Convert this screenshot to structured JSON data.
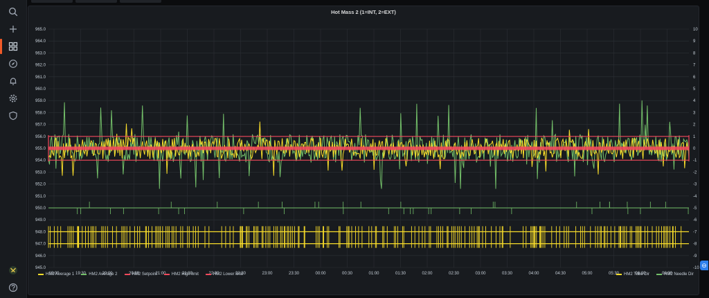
{
  "sidebar": {
    "items": [
      {
        "name": "search",
        "icon": "search-icon"
      },
      {
        "name": "create",
        "icon": "plus-icon"
      },
      {
        "name": "dashboards",
        "icon": "grid-icon",
        "active": true
      },
      {
        "name": "explore",
        "icon": "compass-icon"
      },
      {
        "name": "alerting",
        "icon": "bell-icon"
      },
      {
        "name": "configuration",
        "icon": "gear-icon"
      },
      {
        "name": "server-admin",
        "icon": "shield-icon"
      }
    ],
    "bottom": [
      {
        "name": "user",
        "icon": "avatar-icon"
      },
      {
        "name": "help",
        "icon": "help-icon"
      }
    ]
  },
  "panel": {
    "title": "Hot Mass 2 (1=INT, 2=EXT)"
  },
  "chart_data": {
    "type": "line",
    "title": "Hot Mass 2 (1=INT, 2=EXT)",
    "x_ticks": [
      "19:00",
      "19:30",
      "20:00",
      "20:30",
      "21:00",
      "21:30",
      "22:00",
      "22:30",
      "23:00",
      "23:30",
      "00:00",
      "00:30",
      "01:00",
      "01:30",
      "02:00",
      "02:30",
      "03:00",
      "03:30",
      "04:00",
      "04:30",
      "05:00",
      "05:30",
      "06:00",
      "06:30"
    ],
    "y_left_ticks": [
      "965.0",
      "964.0",
      "963.0",
      "962.0",
      "961.0",
      "960.0",
      "959.0",
      "958.0",
      "957.0",
      "956.0",
      "955.0",
      "954.0",
      "953.0",
      "952.0",
      "951.0",
      "950.0",
      "949.0",
      "948.0",
      "947.0",
      "946.0",
      "945.0"
    ],
    "y_right_ticks": [
      "10",
      "9",
      "8",
      "7",
      "6",
      "5",
      "4",
      "3",
      "2",
      "1",
      "0",
      "-1",
      "-2",
      "-3",
      "-4",
      "-5",
      "-6",
      "-7",
      "-8",
      "-9",
      "-10"
    ],
    "ylim_left": [
      945,
      965
    ],
    "ylim_right": [
      -10,
      10
    ],
    "grid": true,
    "series": [
      {
        "name": "HM2 Average 1",
        "color": "#fade2a",
        "axis": "left",
        "mean": 955.0,
        "range": [
          952.7,
          957.5
        ]
      },
      {
        "name": "HM2 Average 2",
        "color": "#73bf69",
        "axis": "left",
        "mean": 955.0,
        "range": [
          951.6,
          959.2
        ]
      },
      {
        "name": "HM2 Setpoint",
        "color": "#f2495c",
        "axis": "left",
        "value": 955.0
      },
      {
        "name": "HM2 High limit",
        "color": "#f2495c",
        "axis": "left",
        "value": 956.0
      },
      {
        "name": "HM2 Lower limit",
        "color": "#f2495c",
        "axis": "left",
        "value": 954.0
      },
      {
        "name": "HM2 Tube Dir",
        "color": "#fade2a",
        "axis": "right",
        "levels": [
          -7,
          -8
        ]
      },
      {
        "name": "HM2 Needle Dir",
        "color": "#73bf69",
        "axis": "right",
        "levels": [
          -5
        ]
      }
    ],
    "legend_left": [
      "HM2 Average 1",
      "HM2 Average 2",
      "HM2 Setpoint",
      "HM2 High limit",
      "HM2 Lower limit"
    ],
    "legend_right": [
      "HM2 Tube Dir",
      "HM2 Needle Dir"
    ],
    "legend_placement": "bottom"
  },
  "colors": {
    "yellow": "#fade2a",
    "green": "#73bf69",
    "red": "#f2495c",
    "accent": "#f05a28"
  }
}
